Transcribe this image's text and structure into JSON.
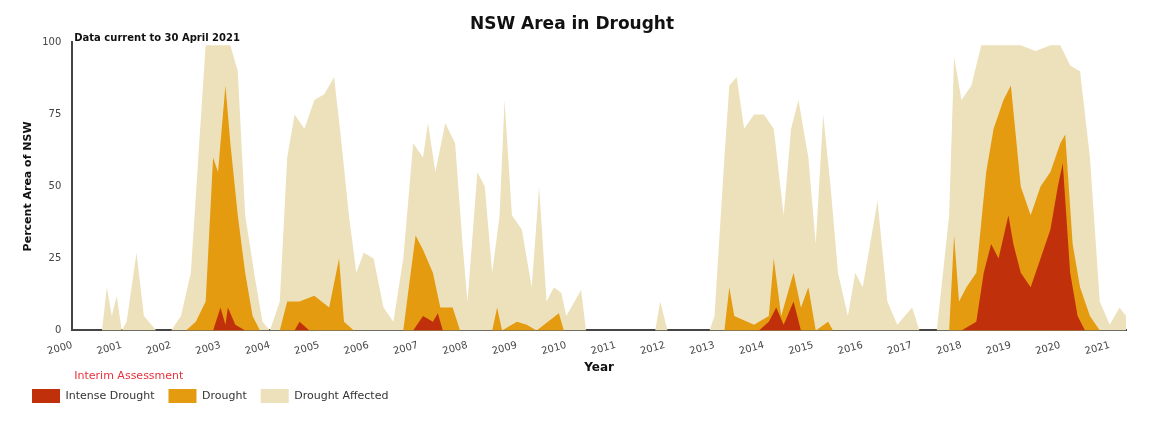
{
  "chart_data": {
    "type": "area",
    "title": "NSW Area in Drought",
    "xlabel": "Year",
    "ylabel": "Percent Area of NSW",
    "annotations": [
      "Data current to 30 April 2021",
      "Interim Assessment"
    ],
    "xlim": [
      2000,
      2021.33
    ],
    "xticks": [
      2000,
      2001,
      2002,
      2003,
      2004,
      2005,
      2006,
      2007,
      2008,
      2009,
      2010,
      2011,
      2012,
      2013,
      2014,
      2015,
      2016,
      2017,
      2018,
      2019,
      2020,
      2021
    ],
    "ylim": [
      0,
      100
    ],
    "yticks": [
      0,
      25,
      50,
      75,
      100
    ],
    "grid": false,
    "legend": "bottom left",
    "series": [
      {
        "name": "Intense Drought",
        "color": "#c0300a",
        "x": [
          2002.85,
          2003.0,
          2003.1,
          2003.15,
          2003.3,
          2003.5,
          2004.5,
          2004.6,
          2004.8,
          2006.9,
          2007.1,
          2007.3,
          2007.4,
          2007.5,
          2013.9,
          2014.1,
          2014.25,
          2014.4,
          2014.6,
          2014.75,
          2018.0,
          2018.3,
          2018.45,
          2018.6,
          2018.75,
          2018.95,
          2019.05,
          2019.2,
          2019.4,
          2019.6,
          2019.8,
          2019.95,
          2020.05,
          2020.2,
          2020.35,
          2020.5
        ],
        "values": [
          0,
          8,
          2,
          8,
          2,
          0,
          0,
          3,
          0,
          0,
          5,
          3,
          6,
          0,
          0,
          3,
          8,
          2,
          10,
          0,
          0,
          3,
          20,
          30,
          25,
          40,
          30,
          20,
          15,
          25,
          35,
          50,
          58,
          20,
          5,
          0
        ]
      },
      {
        "name": "Drought",
        "color": "#e59b0f",
        "x": [
          2002.3,
          2002.5,
          2002.7,
          2002.85,
          2002.95,
          2003.1,
          2003.2,
          2003.35,
          2003.5,
          2003.65,
          2003.8,
          2004.2,
          2004.35,
          2004.6,
          2004.9,
          2005.2,
          2005.4,
          2005.5,
          2005.7,
          2006.7,
          2006.85,
          2006.95,
          2007.1,
          2007.3,
          2007.45,
          2007.7,
          2007.85,
          2008.5,
          2008.6,
          2008.7,
          2009.0,
          2009.2,
          2009.4,
          2009.85,
          2009.95,
          2013.2,
          2013.3,
          2013.4,
          2013.8,
          2014.1,
          2014.2,
          2014.35,
          2014.6,
          2014.75,
          2014.9,
          2015.05,
          2015.3,
          2015.4,
          2017.75,
          2017.85,
          2017.95,
          2018.1,
          2018.3,
          2018.5,
          2018.65,
          2018.85,
          2019.0,
          2019.2,
          2019.4,
          2019.6,
          2019.8,
          2020.0,
          2020.1,
          2020.25,
          2020.4,
          2020.6,
          2020.8
        ],
        "values": [
          0,
          3,
          10,
          60,
          55,
          85,
          65,
          40,
          20,
          5,
          0,
          0,
          10,
          10,
          12,
          8,
          25,
          3,
          0,
          0,
          20,
          33,
          28,
          20,
          8,
          8,
          0,
          0,
          8,
          0,
          3,
          2,
          0,
          6,
          0,
          0,
          15,
          5,
          2,
          5,
          25,
          5,
          20,
          8,
          15,
          0,
          3,
          0,
          0,
          33,
          10,
          15,
          20,
          55,
          70,
          80,
          85,
          50,
          40,
          50,
          55,
          65,
          68,
          30,
          15,
          5,
          0
        ]
      },
      {
        "name": "Drought Affected",
        "color": "#ede1bc",
        "x": [
          2000,
          2000.6,
          2000.7,
          2000.8,
          2000.9,
          2001.0,
          2001.1,
          2001.3,
          2001.45,
          2001.6,
          2001.7,
          2002.0,
          2002.2,
          2002.4,
          2002.55,
          2002.7,
          2003.0,
          2003.2,
          2003.35,
          2003.5,
          2003.7,
          2003.85,
          2004.0,
          2004.2,
          2004.35,
          2004.5,
          2004.7,
          2004.9,
          2005.1,
          2005.3,
          2005.45,
          2005.6,
          2005.75,
          2005.9,
          2006.1,
          2006.3,
          2006.5,
          2006.7,
          2006.9,
          2007.1,
          2007.2,
          2007.35,
          2007.55,
          2007.75,
          2007.9,
          2008.0,
          2008.2,
          2008.35,
          2008.5,
          2008.65,
          2008.75,
          2008.9,
          2009.1,
          2009.3,
          2009.45,
          2009.6,
          2009.75,
          2009.9,
          2010.0,
          2010.3,
          2010.4,
          2011.8,
          2011.9,
          2012.05,
          2012.9,
          2013.0,
          2013.2,
          2013.3,
          2013.45,
          2013.6,
          2013.8,
          2014.0,
          2014.2,
          2014.4,
          2014.55,
          2014.7,
          2014.9,
          2015.05,
          2015.2,
          2015.35,
          2015.5,
          2015.7,
          2015.85,
          2016.0,
          2016.3,
          2016.5,
          2016.7,
          2017.0,
          2017.15,
          2017.5,
          2017.75,
          2017.85,
          2018.0,
          2018.2,
          2018.4,
          2018.8,
          2019.2,
          2019.5,
          2019.8,
          2020.0,
          2020.2,
          2020.4,
          2020.6,
          2020.8,
          2021.0,
          2021.2,
          2021.33
        ],
        "values": [
          0,
          0,
          15,
          5,
          12,
          0,
          3,
          27,
          5,
          2,
          0,
          0,
          5,
          20,
          60,
          99,
          99,
          99,
          90,
          40,
          18,
          3,
          0,
          10,
          60,
          75,
          70,
          80,
          82,
          88,
          65,
          40,
          20,
          27,
          25,
          8,
          3,
          25,
          65,
          60,
          72,
          55,
          72,
          65,
          30,
          10,
          55,
          50,
          20,
          40,
          80,
          40,
          35,
          15,
          50,
          10,
          15,
          13,
          5,
          14,
          0,
          0,
          10,
          0,
          0,
          5,
          60,
          85,
          88,
          70,
          75,
          75,
          70,
          40,
          70,
          80,
          60,
          30,
          75,
          50,
          20,
          5,
          20,
          15,
          45,
          10,
          2,
          8,
          0,
          0,
          40,
          95,
          80,
          85,
          99,
          99,
          99,
          97,
          99,
          99,
          92,
          90,
          60,
          10,
          2,
          8,
          5
        ]
      }
    ]
  }
}
